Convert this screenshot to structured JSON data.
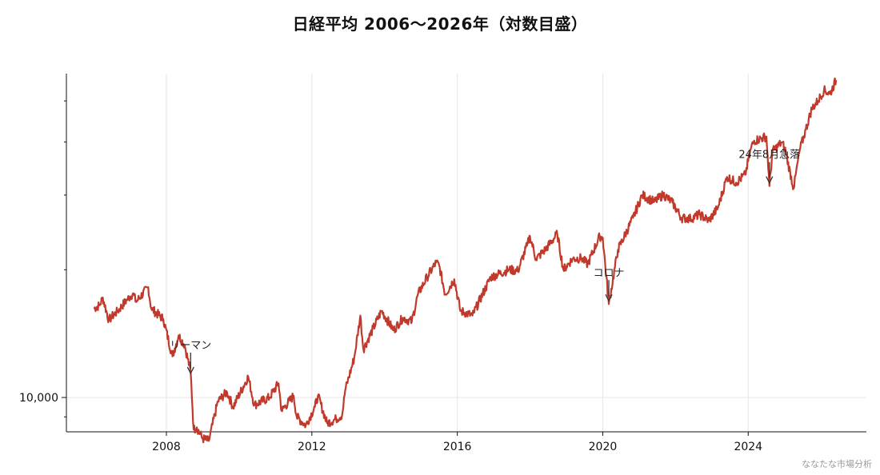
{
  "title": "日経平均 2006〜2026年（対数目盛）",
  "watermark": "ななたな市場分析",
  "colors": {
    "series": "#c0392b",
    "grid": "#e6e6e6",
    "axis": "#111111",
    "annotation": "#333333"
  },
  "chart_data": {
    "type": "line",
    "title": "日経平均 2006〜2026年（対数目盛）",
    "xlabel": "",
    "ylabel": "",
    "y_scale": "log",
    "xlim": [
      "2005-04",
      "2027-04"
    ],
    "ylim": [
      8300,
      58000
    ],
    "x_ticks": [
      2008,
      2012,
      2016,
      2020,
      2024
    ],
    "x_tick_labels": [
      "2008",
      "2012",
      "2016",
      "2020",
      "2024"
    ],
    "y_ticks": [
      10000
    ],
    "y_tick_labels": [
      "10,000"
    ],
    "grid": true,
    "legend": "none",
    "series": [
      {
        "x": [
          "2006-01",
          "2006-03",
          "2006-04",
          "2006-06",
          "2006-07",
          "2006-09",
          "2006-12",
          "2007-02",
          "2007-03",
          "2007-07",
          "2007-08",
          "2007-12",
          "2008-03",
          "2008-05",
          "2008-07",
          "2008-09",
          "2008-10",
          "2008-11",
          "2009-01",
          "2009-03",
          "2009-06",
          "2009-09",
          "2009-11",
          "2010-04",
          "2010-06",
          "2010-11",
          "2011-02",
          "2011-03",
          "2011-07",
          "2011-08",
          "2011-11",
          "2012-02",
          "2012-03",
          "2012-06",
          "2012-09",
          "2012-11",
          "2012-12",
          "2013-03",
          "2013-05",
          "2013-06",
          "2013-12",
          "2014-04",
          "2014-07",
          "2014-10",
          "2014-12",
          "2015-03",
          "2015-06",
          "2015-07",
          "2015-09",
          "2015-12",
          "2016-02",
          "2016-06",
          "2016-12",
          "2017-06",
          "2017-09",
          "2017-12",
          "2018-01",
          "2018-03",
          "2018-06",
          "2018-10",
          "2018-12",
          "2019-03",
          "2019-06",
          "2019-08",
          "2019-12",
          "2020-01",
          "2020-03",
          "2020-06",
          "2020-11",
          "2021-02",
          "2021-06",
          "2021-09",
          "2021-12",
          "2022-03",
          "2022-06",
          "2022-09",
          "2022-12",
          "2023-03",
          "2023-06",
          "2023-09",
          "2023-12",
          "2024-02",
          "2024-03",
          "2024-07",
          "2024-08",
          "2024-09",
          "2024-12",
          "2025-01",
          "2025-04",
          "2025-06",
          "2025-08",
          "2025-10",
          "2025-12",
          "2026-02",
          "2026-04",
          "2026-06"
        ],
        "y": [
          16200,
          16500,
          17200,
          15200,
          15500,
          16000,
          17000,
          17600,
          16800,
          18200,
          16200,
          15300,
          12500,
          14000,
          13300,
          11500,
          8400,
          8500,
          8000,
          7900,
          9800,
          10300,
          9500,
          11200,
          9600,
          10000,
          10800,
          9300,
          10100,
          9000,
          8600,
          9500,
          10100,
          8700,
          8900,
          9100,
          10400,
          12400,
          15600,
          13000,
          16000,
          14400,
          15400,
          15100,
          17500,
          19200,
          20800,
          20500,
          17500,
          19000,
          16000,
          15600,
          19200,
          20000,
          19900,
          22800,
          24000,
          21200,
          22300,
          24300,
          20000,
          21200,
          21300,
          20600,
          24000,
          23800,
          16600,
          22300,
          26500,
          30000,
          28900,
          30100,
          28800,
          26500,
          26400,
          27000,
          26100,
          28000,
          33100,
          32100,
          33500,
          38900,
          40300,
          41200,
          31500,
          38000,
          39900,
          38800,
          31100,
          38300,
          42800,
          48000,
          50000,
          53000,
          52000,
          56000
        ]
      }
    ],
    "annotations": [
      {
        "label": "リーマン",
        "x": "2008-09",
        "y": 11200
      },
      {
        "label": "コロナ",
        "x": "2020-03",
        "y": 16600
      },
      {
        "label": "24年8月急落",
        "x": "2024-08",
        "y": 31500
      }
    ]
  }
}
